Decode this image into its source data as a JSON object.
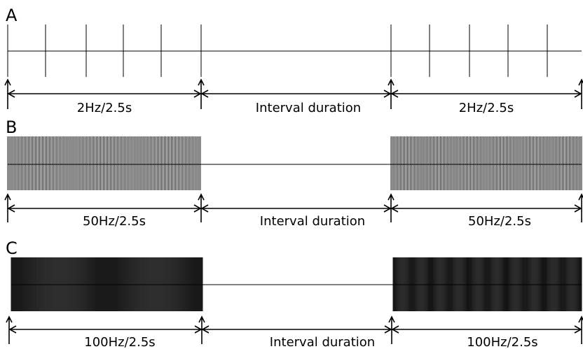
{
  "panels": [
    {
      "id": "A",
      "label": "A",
      "stimulus_frequency_hz": 2,
      "segments": [
        "2Hz/2.5s",
        "Interval duration",
        "2Hz/2.5s"
      ]
    },
    {
      "id": "B",
      "label": "B",
      "stimulus_frequency_hz": 50,
      "segments": [
        "50Hz/2.5s",
        "Interval duration",
        "50Hz/2.5s"
      ]
    },
    {
      "id": "C",
      "label": "C",
      "stimulus_frequency_hz": 100,
      "segments": [
        "100Hz/2.5s",
        "Interval duration",
        "100Hz/2.5s"
      ]
    }
  ],
  "colors": {
    "stroke": "#000000",
    "background": "#ffffff"
  }
}
